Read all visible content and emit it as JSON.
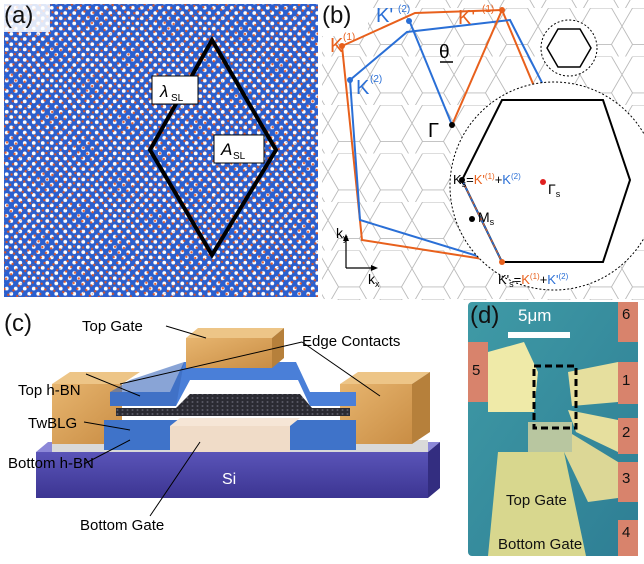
{
  "panel_a": {
    "label": "(a)",
    "lambda_label": "λ",
    "lambda_sub": "SL",
    "area_label": "A",
    "area_sub": "SL"
  },
  "panel_b": {
    "label": "(b)",
    "theta": "θ",
    "gamma": "Γ",
    "k1": "K",
    "k1_sup": "(1)",
    "k2": "K",
    "k2_sup": "(2)",
    "kp1": "K'",
    "kp1_sup": "(1)",
    "kp2": "K'",
    "kp2_sup": "(2)",
    "gamma_s": "Γ",
    "gamma_s_sub": "s",
    "m_s": "M",
    "m_s_sub": "s",
    "ks_eq_1": "K",
    "ks_eq_1_sub": "s",
    "ks_eq_2": "=",
    "ks_eq_3": "K'",
    "ks_eq_3_sup": "(1)",
    "ks_eq_4": "+",
    "ks_eq_5": "K",
    "ks_eq_5_sup": "(2)",
    "kps_eq_1": "K'",
    "kps_eq_1_sub": "s",
    "kps_eq_2": "=",
    "kps_eq_3": "K",
    "kps_eq_3_sup": "(1)",
    "kps_eq_4": "+",
    "kps_eq_5": "K'",
    "kps_eq_5_sup": "(2)",
    "ky": "k",
    "ky_sub": "y",
    "kx": "k",
    "kx_sub": "x",
    "colors": {
      "layer1": "#e8601c",
      "layer2": "#2a6fd6"
    }
  },
  "panel_c": {
    "label": "(c)",
    "top_gate": "Top Gate",
    "edge_contacts": "Edge Contacts",
    "top_hbn": "Top h-BN",
    "twblg": "TwBLG",
    "bottom_hbn": "Bottom h-BN",
    "si": "Si",
    "bottom_gate": "Bottom Gate"
  },
  "panel_d": {
    "label": "(d)",
    "scale": "5μm",
    "contacts": [
      "1",
      "2",
      "3",
      "4",
      "5",
      "6"
    ],
    "top_gate": "Top Gate",
    "bottom_gate": "Bottom Gate"
  }
}
